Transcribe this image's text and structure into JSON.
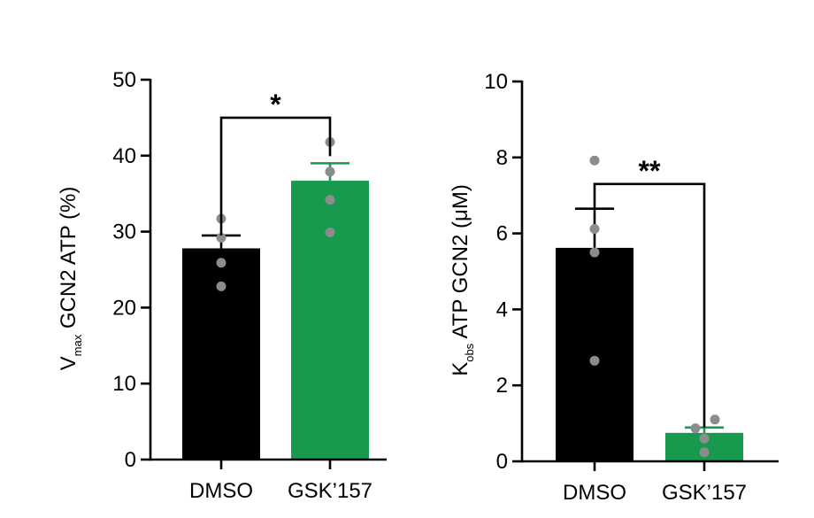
{
  "chart_data": [
    {
      "type": "bar",
      "ylabel_main": "V",
      "ylabel_sub": "max",
      "ylabel_rest": "GCN2 ATP (%)",
      "categories": [
        "DMSO",
        "GSK’157"
      ],
      "values": [
        27.8,
        36.7
      ],
      "errors": [
        1.7,
        2.3
      ],
      "points": [
        [
          31.7,
          29.2,
          25.9,
          22.8
        ],
        [
          41.8,
          37.9,
          34.2,
          29.9
        ]
      ],
      "colors": [
        "#000000",
        "#17994e"
      ],
      "ylim": [
        0,
        50
      ],
      "yticks": [
        0,
        10,
        20,
        30,
        40,
        50
      ],
      "significance": "*",
      "bracket_y": 45
    },
    {
      "type": "bar",
      "ylabel_main": "K",
      "ylabel_sub": "obs",
      "ylabel_rest": "ATP GCN2 (μM)",
      "categories": [
        "DMSO",
        "GSK’157"
      ],
      "values": [
        5.62,
        0.75
      ],
      "errors": [
        1.03,
        0.14
      ],
      "points": [
        [
          7.92,
          6.12,
          5.5,
          2.65
        ],
        [
          1.1,
          0.87,
          0.6,
          0.24
        ]
      ],
      "colors": [
        "#000000",
        "#17994e"
      ],
      "ylim": [
        0,
        10
      ],
      "yticks": [
        0,
        2,
        4,
        6,
        8,
        10
      ],
      "significance": "**",
      "bracket_y": 7.3
    }
  ]
}
